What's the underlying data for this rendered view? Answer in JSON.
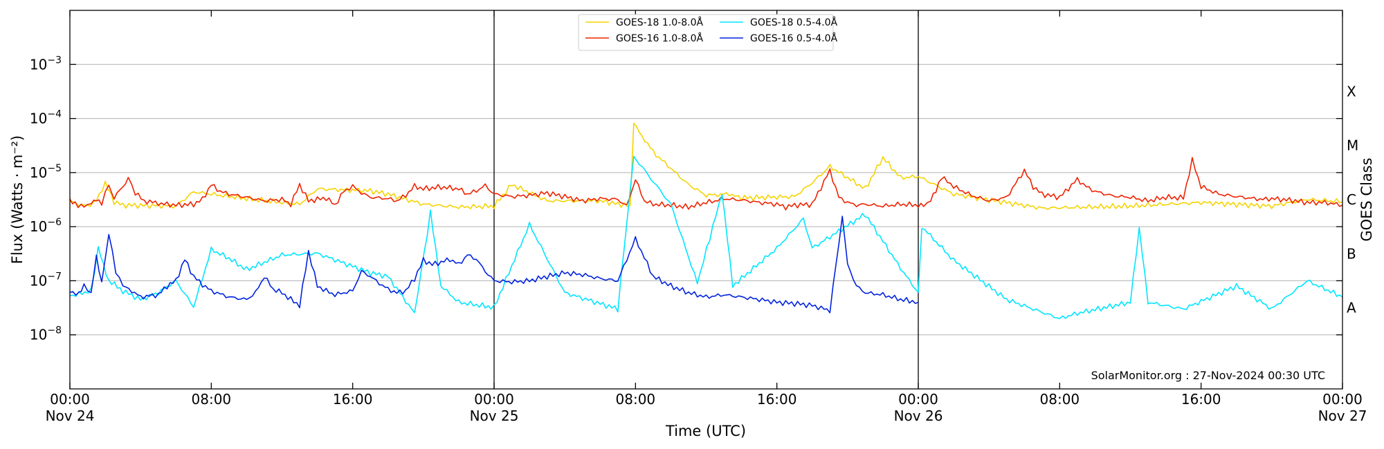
{
  "chart_data": {
    "type": "line",
    "title": "",
    "xlabel": "Time (UTC)",
    "ylabel": "Flux (Watts · m⁻²)",
    "y2label": "GOES Class",
    "yscale": "log",
    "ylim": [
      1e-09,
      0.01
    ],
    "xlim_hours": [
      0,
      72
    ],
    "grid": "horizontal",
    "legend_position": "top-center",
    "credit": "SolarMonitor.org : 27-Nov-2024 00:30 UTC",
    "day_dividers_hours": [
      24,
      48
    ],
    "x_ticks": [
      {
        "h": 0,
        "time": "00:00",
        "date": "Nov 24"
      },
      {
        "h": 8,
        "time": "08:00",
        "date": ""
      },
      {
        "h": 16,
        "time": "16:00",
        "date": ""
      },
      {
        "h": 24,
        "time": "00:00",
        "date": "Nov 25"
      },
      {
        "h": 32,
        "time": "08:00",
        "date": ""
      },
      {
        "h": 40,
        "time": "16:00",
        "date": ""
      },
      {
        "h": 48,
        "time": "00:00",
        "date": "Nov 26"
      },
      {
        "h": 56,
        "time": "08:00",
        "date": ""
      },
      {
        "h": 64,
        "time": "16:00",
        "date": ""
      },
      {
        "h": 72,
        "time": "00:00",
        "date": "Nov 27"
      }
    ],
    "y_ticks": [
      {
        "exp": -8,
        "label": "10",
        "sup": "−8"
      },
      {
        "exp": -7,
        "label": "10",
        "sup": "−7"
      },
      {
        "exp": -6,
        "label": "10",
        "sup": "−6"
      },
      {
        "exp": -5,
        "label": "10",
        "sup": "−5"
      },
      {
        "exp": -4,
        "label": "10",
        "sup": "−4"
      },
      {
        "exp": -3,
        "label": "10",
        "sup": "−3"
      }
    ],
    "goes_classes": [
      {
        "label": "A",
        "exp": -7.5
      },
      {
        "label": "B",
        "exp": -6.5
      },
      {
        "label": "C",
        "exp": -5.5
      },
      {
        "label": "M",
        "exp": -4.5
      },
      {
        "label": "X",
        "exp": -3.5
      }
    ],
    "series": [
      {
        "name": "GOES-18 1.0-8.0Å",
        "color": "#f5d300",
        "points": [
          [
            0,
            2.9e-06
          ],
          [
            0.5,
            2.6e-06
          ],
          [
            1,
            2.4e-06
          ],
          [
            1.5,
            3e-06
          ],
          [
            2,
            6.5e-06
          ],
          [
            2.5,
            2.9e-06
          ],
          [
            3,
            2.5e-06
          ],
          [
            6,
            2.4e-06
          ],
          [
            7,
            4.4e-06
          ],
          [
            10,
            3.3e-06
          ],
          [
            13,
            2.6e-06
          ],
          [
            14,
            5e-06
          ],
          [
            17,
            4.6e-06
          ],
          [
            18,
            4e-06
          ],
          [
            20,
            2.6e-06
          ],
          [
            22,
            2.3e-06
          ],
          [
            24,
            2.4e-06
          ],
          [
            25,
            6e-06
          ],
          [
            27,
            3e-06
          ],
          [
            30,
            3e-06
          ],
          [
            31.7,
            2.4e-06
          ],
          [
            31.9,
            8e-05
          ],
          [
            33,
            2.4e-05
          ],
          [
            35,
            6e-06
          ],
          [
            36,
            3.8e-06
          ],
          [
            37.3,
            4e-06
          ],
          [
            38,
            3.4e-06
          ],
          [
            41,
            3.6e-06
          ],
          [
            42,
            6.5e-06
          ],
          [
            43,
            1.3e-05
          ],
          [
            45,
            5e-06
          ],
          [
            46,
            1.9e-05
          ],
          [
            47,
            8e-06
          ],
          [
            48,
            8.5e-06
          ],
          [
            50,
            4e-06
          ],
          [
            55,
            2.2e-06
          ],
          [
            60,
            2.4e-06
          ],
          [
            64,
            2.8e-06
          ],
          [
            68,
            2.4e-06
          ],
          [
            70,
            3.2e-06
          ],
          [
            72,
            2.9e-06
          ]
        ]
      },
      {
        "name": "GOES-16 1.0-8.0Å",
        "color": "#ee2200",
        "points": [
          [
            0,
            2.9e-06
          ],
          [
            0.3,
            2.6e-06
          ],
          [
            0.8,
            2.4e-06
          ],
          [
            1.2,
            2.6e-06
          ],
          [
            1.5,
            3.1e-06
          ],
          [
            1.8,
            2.8e-06
          ],
          [
            2.2,
            6e-06
          ],
          [
            2.5,
            3.4e-06
          ],
          [
            3.0,
            5.6e-06
          ],
          [
            3.3,
            8e-06
          ],
          [
            3.7,
            4.2e-06
          ],
          [
            4.2,
            3e-06
          ],
          [
            5,
            2.7e-06
          ],
          [
            6,
            2.5e-06
          ],
          [
            7,
            2.6e-06
          ],
          [
            7.5,
            3.2e-06
          ],
          [
            8,
            6e-06
          ],
          [
            8.5,
            4.5e-06
          ],
          [
            9,
            4e-06
          ],
          [
            10,
            3.5e-06
          ],
          [
            11,
            3e-06
          ],
          [
            12,
            3.2e-06
          ],
          [
            12.5,
            2.6e-06
          ],
          [
            13,
            6e-06
          ],
          [
            13.5,
            3e-06
          ],
          [
            14,
            3.2e-06
          ],
          [
            14.5,
            3.4e-06
          ],
          [
            15,
            2.5e-06
          ],
          [
            15.5,
            4.5e-06
          ],
          [
            16,
            5.6e-06
          ],
          [
            16.5,
            4.2e-06
          ],
          [
            17,
            3.5e-06
          ],
          [
            18,
            3.3e-06
          ],
          [
            18.5,
            3e-06
          ],
          [
            19,
            3.8e-06
          ],
          [
            19.5,
            5.6e-06
          ],
          [
            20,
            5e-06
          ],
          [
            21,
            5.4e-06
          ],
          [
            22,
            5e-06
          ],
          [
            22.5,
            4e-06
          ],
          [
            23,
            4.6e-06
          ],
          [
            23.5,
            5.8e-06
          ],
          [
            24,
            4e-06
          ],
          [
            25,
            3.6e-06
          ],
          [
            26,
            3.8e-06
          ],
          [
            27,
            4.2e-06
          ],
          [
            28,
            3.6e-06
          ],
          [
            29,
            3e-06
          ],
          [
            30,
            3.3e-06
          ],
          [
            31,
            3.2e-06
          ],
          [
            31.5,
            2.4e-06
          ],
          [
            32,
            7.5e-06
          ],
          [
            32.5,
            3e-06
          ],
          [
            33,
            2.6e-06
          ],
          [
            34,
            2.5e-06
          ],
          [
            35,
            2.3e-06
          ],
          [
            36,
            2.8e-06
          ],
          [
            36.5,
            3e-06
          ],
          [
            37,
            3.3e-06
          ],
          [
            38,
            3.1e-06
          ],
          [
            39,
            2.8e-06
          ],
          [
            40,
            2.6e-06
          ],
          [
            40.5,
            2.3e-06
          ],
          [
            41,
            2.5e-06
          ],
          [
            42,
            2.6e-06
          ],
          [
            43,
            1.1e-05
          ],
          [
            43.5,
            3.5e-06
          ],
          [
            44,
            2.8e-06
          ],
          [
            44.5,
            2.5e-06
          ],
          [
            45,
            2.6e-06
          ],
          [
            46,
            2.4e-06
          ],
          [
            47,
            2.6e-06
          ],
          [
            48,
            2.5e-06
          ],
          [
            48.3,
            2.4e-06
          ],
          [
            48.7,
            3e-06
          ],
          [
            49,
            4.6e-06
          ],
          [
            49.3,
            8.5e-06
          ],
          [
            50,
            5.5e-06
          ],
          [
            51,
            3.8e-06
          ],
          [
            52,
            3e-06
          ],
          [
            53,
            3.5e-06
          ],
          [
            54,
            1.1e-05
          ],
          [
            54.5,
            5.5e-06
          ],
          [
            55,
            4e-06
          ],
          [
            56,
            3.5e-06
          ],
          [
            57,
            7.5e-06
          ],
          [
            57.5,
            5.5e-06
          ],
          [
            58,
            4.5e-06
          ],
          [
            59,
            3.7e-06
          ],
          [
            60,
            3.5e-06
          ],
          [
            61,
            3e-06
          ],
          [
            62,
            3.5e-06
          ],
          [
            63,
            3.4e-06
          ],
          [
            63.5,
            1.7e-05
          ],
          [
            64,
            5.5e-06
          ],
          [
            65,
            4e-06
          ],
          [
            66,
            3.6e-06
          ],
          [
            67,
            3.3e-06
          ],
          [
            67.5,
            3.2e-06
          ],
          [
            68,
            3.3e-06
          ],
          [
            69,
            3.1e-06
          ],
          [
            70,
            2.8e-06
          ],
          [
            71,
            2.8e-06
          ],
          [
            72,
            2.5e-06
          ]
        ]
      },
      {
        "name": "GOES-18 0.5-4.0Å",
        "color": "#00e5ff",
        "points": [
          [
            0,
            5.2e-08
          ],
          [
            1.2,
            6.5e-08
          ],
          [
            1.6,
            4e-07
          ],
          [
            2.2,
            1e-07
          ],
          [
            3,
            6.5e-08
          ],
          [
            4,
            4.5e-08
          ],
          [
            5,
            6e-08
          ],
          [
            6,
            1e-07
          ],
          [
            7,
            3.3e-08
          ],
          [
            8,
            3.8e-07
          ],
          [
            9,
            2.6e-07
          ],
          [
            10,
            1.6e-07
          ],
          [
            12,
            3e-07
          ],
          [
            14,
            3.2e-07
          ],
          [
            17,
            1.4e-07
          ],
          [
            18,
            1.2e-07
          ],
          [
            19.5,
            2.5e-08
          ],
          [
            20.4,
            1.8e-06
          ],
          [
            21,
            8e-08
          ],
          [
            22,
            4e-08
          ],
          [
            24,
            3.2e-08
          ],
          [
            26,
            1.1e-06
          ],
          [
            28,
            6e-08
          ],
          [
            31,
            3e-08
          ],
          [
            31.9,
            2e-05
          ],
          [
            34,
            2.6e-06
          ],
          [
            35.5,
            9e-08
          ],
          [
            36.9,
            4.2e-06
          ],
          [
            37.5,
            8e-08
          ],
          [
            40,
            4e-07
          ],
          [
            41.5,
            1.4e-06
          ],
          [
            42,
            4e-07
          ],
          [
            45,
            1.7e-06
          ],
          [
            47,
            1.7e-07
          ],
          [
            48,
            6e-08
          ],
          [
            48.2,
            1e-06
          ],
          [
            50,
            2.4e-07
          ],
          [
            53,
            4.5e-08
          ],
          [
            56,
            2e-08
          ],
          [
            57,
            2.5e-08
          ],
          [
            60,
            4e-08
          ],
          [
            60.5,
            9.5e-07
          ],
          [
            61,
            4e-08
          ],
          [
            63,
            3e-08
          ],
          [
            66,
            8e-08
          ],
          [
            68,
            3e-08
          ],
          [
            70,
            1e-07
          ],
          [
            72,
            5e-08
          ]
        ]
      },
      {
        "name": "GOES-16 0.5-4.0Å",
        "color": "#0022dd",
        "points": [
          [
            0,
            6.5e-08
          ],
          [
            0.5,
            5.5e-08
          ],
          [
            0.8,
            8e-08
          ],
          [
            1.2,
            6e-08
          ],
          [
            1.5,
            3e-07
          ],
          [
            1.8,
            9e-08
          ],
          [
            2.2,
            7.5e-07
          ],
          [
            2.6,
            1.5e-07
          ],
          [
            3.0,
            8e-08
          ],
          [
            3.5,
            6.5e-08
          ],
          [
            4,
            5e-08
          ],
          [
            5,
            5.5e-08
          ],
          [
            5.5,
            8e-08
          ],
          [
            6,
            1e-07
          ],
          [
            6.5,
            2.5e-07
          ],
          [
            7,
            1.2e-07
          ],
          [
            7.5,
            8.5e-08
          ],
          [
            8,
            6.5e-08
          ],
          [
            9,
            5e-08
          ],
          [
            10,
            4.5e-08
          ],
          [
            10.5,
            6e-08
          ],
          [
            11,
            1.2e-07
          ],
          [
            11.5,
            7e-08
          ],
          [
            12,
            6e-08
          ],
          [
            12.5,
            4.5e-08
          ],
          [
            13,
            3.5e-08
          ],
          [
            13.5,
            3.5e-07
          ],
          [
            14,
            8e-08
          ],
          [
            14.5,
            6.5e-08
          ],
          [
            15,
            5.5e-08
          ],
          [
            15.5,
            6e-08
          ],
          [
            16,
            6.5e-08
          ],
          [
            16.5,
            1.5e-07
          ],
          [
            17,
            1.2e-07
          ],
          [
            17.5,
            9e-08
          ],
          [
            18,
            7e-08
          ],
          [
            18.5,
            6e-08
          ],
          [
            19,
            6.5e-08
          ],
          [
            19.5,
            1.1e-07
          ],
          [
            20,
            2.4e-07
          ],
          [
            20.5,
            2e-07
          ],
          [
            21,
            2.2e-07
          ],
          [
            21.5,
            2.5e-07
          ],
          [
            22,
            2e-07
          ],
          [
            22.5,
            3e-07
          ],
          [
            23,
            2.5e-07
          ],
          [
            23.5,
            1.5e-07
          ],
          [
            24,
            1e-07
          ],
          [
            25,
            9.5e-08
          ],
          [
            26,
            1e-07
          ],
          [
            27,
            1.2e-07
          ],
          [
            28,
            1.4e-07
          ],
          [
            29,
            1.3e-07
          ],
          [
            30,
            1.1e-07
          ],
          [
            31,
            1e-07
          ],
          [
            32,
            6e-07
          ],
          [
            33,
            1.2e-07
          ],
          [
            34,
            8e-08
          ],
          [
            35,
            6e-08
          ],
          [
            36,
            5e-08
          ],
          [
            37,
            5.5e-08
          ],
          [
            38,
            5e-08
          ],
          [
            39,
            4.5e-08
          ],
          [
            40,
            4e-08
          ],
          [
            41,
            3.8e-08
          ],
          [
            42,
            3.5e-08
          ],
          [
            43,
            2.8e-08
          ],
          [
            43.7,
            1.5e-06
          ],
          [
            44,
            2e-07
          ],
          [
            44.5,
            8e-08
          ],
          [
            45,
            6e-08
          ],
          [
            46,
            5.5e-08
          ],
          [
            47,
            4.5e-08
          ],
          [
            48,
            4e-08
          ]
        ]
      }
    ]
  }
}
